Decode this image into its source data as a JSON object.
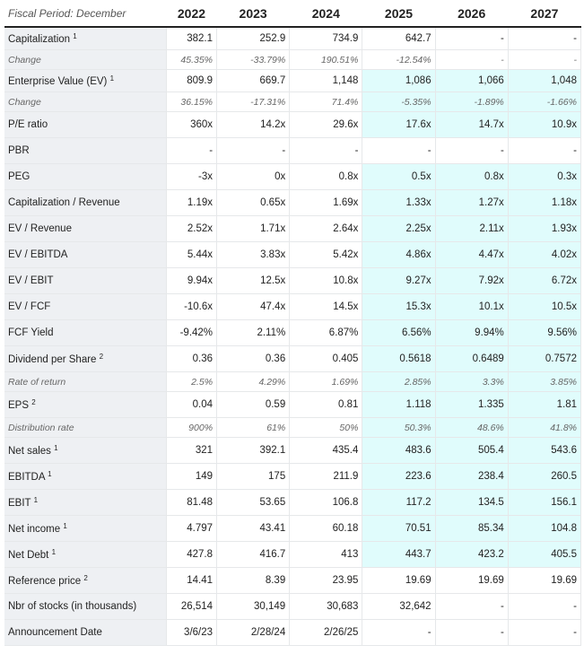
{
  "header": {
    "fiscal_period": "Fiscal Period: December",
    "years": [
      "2022",
      "2023",
      "2024",
      "2025",
      "2026",
      "2027"
    ]
  },
  "colors": {
    "label_bg": "#eef0f3",
    "forecast_highlight": "#e0fcfc"
  },
  "rows": [
    {
      "label": "Capitalization",
      "sup": "1",
      "values": [
        "382.1",
        "252.9",
        "734.9",
        "642.7",
        "-",
        "-"
      ],
      "sub": false,
      "hl": false
    },
    {
      "label": "Change",
      "sup": "",
      "values": [
        "45.35%",
        "-33.79%",
        "190.51%",
        "-12.54%",
        "-",
        "-"
      ],
      "sub": true,
      "hl": false
    },
    {
      "label": "Enterprise Value (EV)",
      "sup": "1",
      "values": [
        "809.9",
        "669.7",
        "1,148",
        "1,086",
        "1,066",
        "1,048"
      ],
      "sub": false,
      "hl": true
    },
    {
      "label": "Change",
      "sup": "",
      "values": [
        "36.15%",
        "-17.31%",
        "71.4%",
        "-5.35%",
        "-1.89%",
        "-1.66%"
      ],
      "sub": true,
      "hl": true
    },
    {
      "label": "P/E ratio",
      "sup": "",
      "values": [
        "360x",
        "14.2x",
        "29.6x",
        "17.6x",
        "14.7x",
        "10.9x"
      ],
      "sub": false,
      "hl": true
    },
    {
      "label": "PBR",
      "sup": "",
      "values": [
        "-",
        "-",
        "-",
        "-",
        "-",
        "-"
      ],
      "sub": false,
      "hl": false
    },
    {
      "label": "PEG",
      "sup": "",
      "values": [
        "-3x",
        "0x",
        "0.8x",
        "0.5x",
        "0.8x",
        "0.3x"
      ],
      "sub": false,
      "hl": true
    },
    {
      "label": "Capitalization / Revenue",
      "sup": "",
      "values": [
        "1.19x",
        "0.65x",
        "1.69x",
        "1.33x",
        "1.27x",
        "1.18x"
      ],
      "sub": false,
      "hl": true
    },
    {
      "label": "EV / Revenue",
      "sup": "",
      "values": [
        "2.52x",
        "1.71x",
        "2.64x",
        "2.25x",
        "2.11x",
        "1.93x"
      ],
      "sub": false,
      "hl": true
    },
    {
      "label": "EV / EBITDA",
      "sup": "",
      "values": [
        "5.44x",
        "3.83x",
        "5.42x",
        "4.86x",
        "4.47x",
        "4.02x"
      ],
      "sub": false,
      "hl": true
    },
    {
      "label": "EV / EBIT",
      "sup": "",
      "values": [
        "9.94x",
        "12.5x",
        "10.8x",
        "9.27x",
        "7.92x",
        "6.72x"
      ],
      "sub": false,
      "hl": true
    },
    {
      "label": "EV / FCF",
      "sup": "",
      "values": [
        "-10.6x",
        "47.4x",
        "14.5x",
        "15.3x",
        "10.1x",
        "10.5x"
      ],
      "sub": false,
      "hl": true
    },
    {
      "label": "FCF Yield",
      "sup": "",
      "values": [
        "-9.42%",
        "2.11%",
        "6.87%",
        "6.56%",
        "9.94%",
        "9.56%"
      ],
      "sub": false,
      "hl": true
    },
    {
      "label": "Dividend per Share",
      "sup": "2",
      "values": [
        "0.36",
        "0.36",
        "0.405",
        "0.5618",
        "0.6489",
        "0.7572"
      ],
      "sub": false,
      "hl": true
    },
    {
      "label": "Rate of return",
      "sup": "",
      "values": [
        "2.5%",
        "4.29%",
        "1.69%",
        "2.85%",
        "3.3%",
        "3.85%"
      ],
      "sub": true,
      "hl": true
    },
    {
      "label": "EPS",
      "sup": "2",
      "values": [
        "0.04",
        "0.59",
        "0.81",
        "1.118",
        "1.335",
        "1.81"
      ],
      "sub": false,
      "hl": true
    },
    {
      "label": "Distribution rate",
      "sup": "",
      "values": [
        "900%",
        "61%",
        "50%",
        "50.3%",
        "48.6%",
        "41.8%"
      ],
      "sub": true,
      "hl": true
    },
    {
      "label": "Net sales",
      "sup": "1",
      "values": [
        "321",
        "392.1",
        "435.4",
        "483.6",
        "505.4",
        "543.6"
      ],
      "sub": false,
      "hl": true
    },
    {
      "label": "EBITDA",
      "sup": "1",
      "values": [
        "149",
        "175",
        "211.9",
        "223.6",
        "238.4",
        "260.5"
      ],
      "sub": false,
      "hl": true
    },
    {
      "label": "EBIT",
      "sup": "1",
      "values": [
        "81.48",
        "53.65",
        "106.8",
        "117.2",
        "134.5",
        "156.1"
      ],
      "sub": false,
      "hl": true
    },
    {
      "label": "Net income",
      "sup": "1",
      "values": [
        "4.797",
        "43.41",
        "60.18",
        "70.51",
        "85.34",
        "104.8"
      ],
      "sub": false,
      "hl": true
    },
    {
      "label": "Net Debt",
      "sup": "1",
      "values": [
        "427.8",
        "416.7",
        "413",
        "443.7",
        "423.2",
        "405.5"
      ],
      "sub": false,
      "hl": true
    },
    {
      "label": "Reference price",
      "sup": "2",
      "values": [
        "14.41",
        "8.39",
        "23.95",
        "19.69",
        "19.69",
        "19.69"
      ],
      "sub": false,
      "hl": false
    },
    {
      "label": "Nbr of stocks (in thousands)",
      "sup": "",
      "values": [
        "26,514",
        "30,149",
        "30,683",
        "32,642",
        "-",
        "-"
      ],
      "sub": false,
      "hl": false
    },
    {
      "label": "Announcement Date",
      "sup": "",
      "values": [
        "3/6/23",
        "2/28/24",
        "2/26/25",
        "-",
        "-",
        "-"
      ],
      "sub": false,
      "hl": false
    }
  ]
}
